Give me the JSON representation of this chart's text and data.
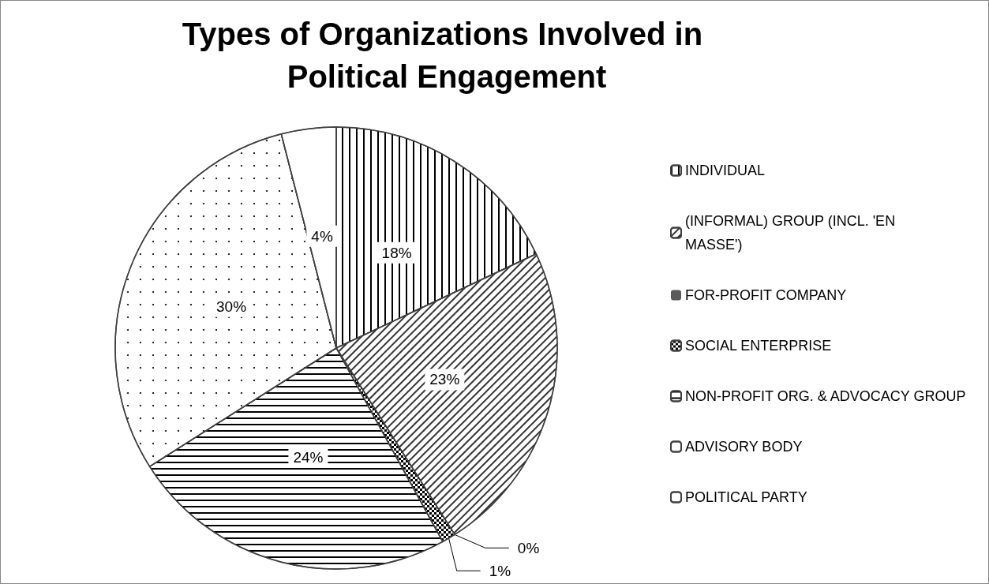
{
  "chart_data": {
    "type": "pie",
    "title": "Types of Organizations Involved in Political Engagement",
    "categories": [
      "INDIVIDUAL",
      "(INFORMAL) GROUP (INCL. 'EN MASSE')",
      "FOR-PROFIT COMPANY",
      "SOCIAL ENTERPRISE",
      "NON-PROFIT ORG. & ADVOCACY GROUP",
      "ADVISORY BODY",
      "POLITICAL PARTY"
    ],
    "values": [
      18,
      23,
      0,
      1,
      24,
      30,
      4
    ],
    "colors": [
      "#ffffff",
      "#ffffff",
      "#595959",
      "#ffffff",
      "#ffffff",
      "#ffffff",
      "#ffffff"
    ],
    "value_labels": [
      "18%",
      "23%",
      "0%",
      "1%",
      "24%",
      "30%",
      "4%"
    ],
    "legend": "right"
  }
}
